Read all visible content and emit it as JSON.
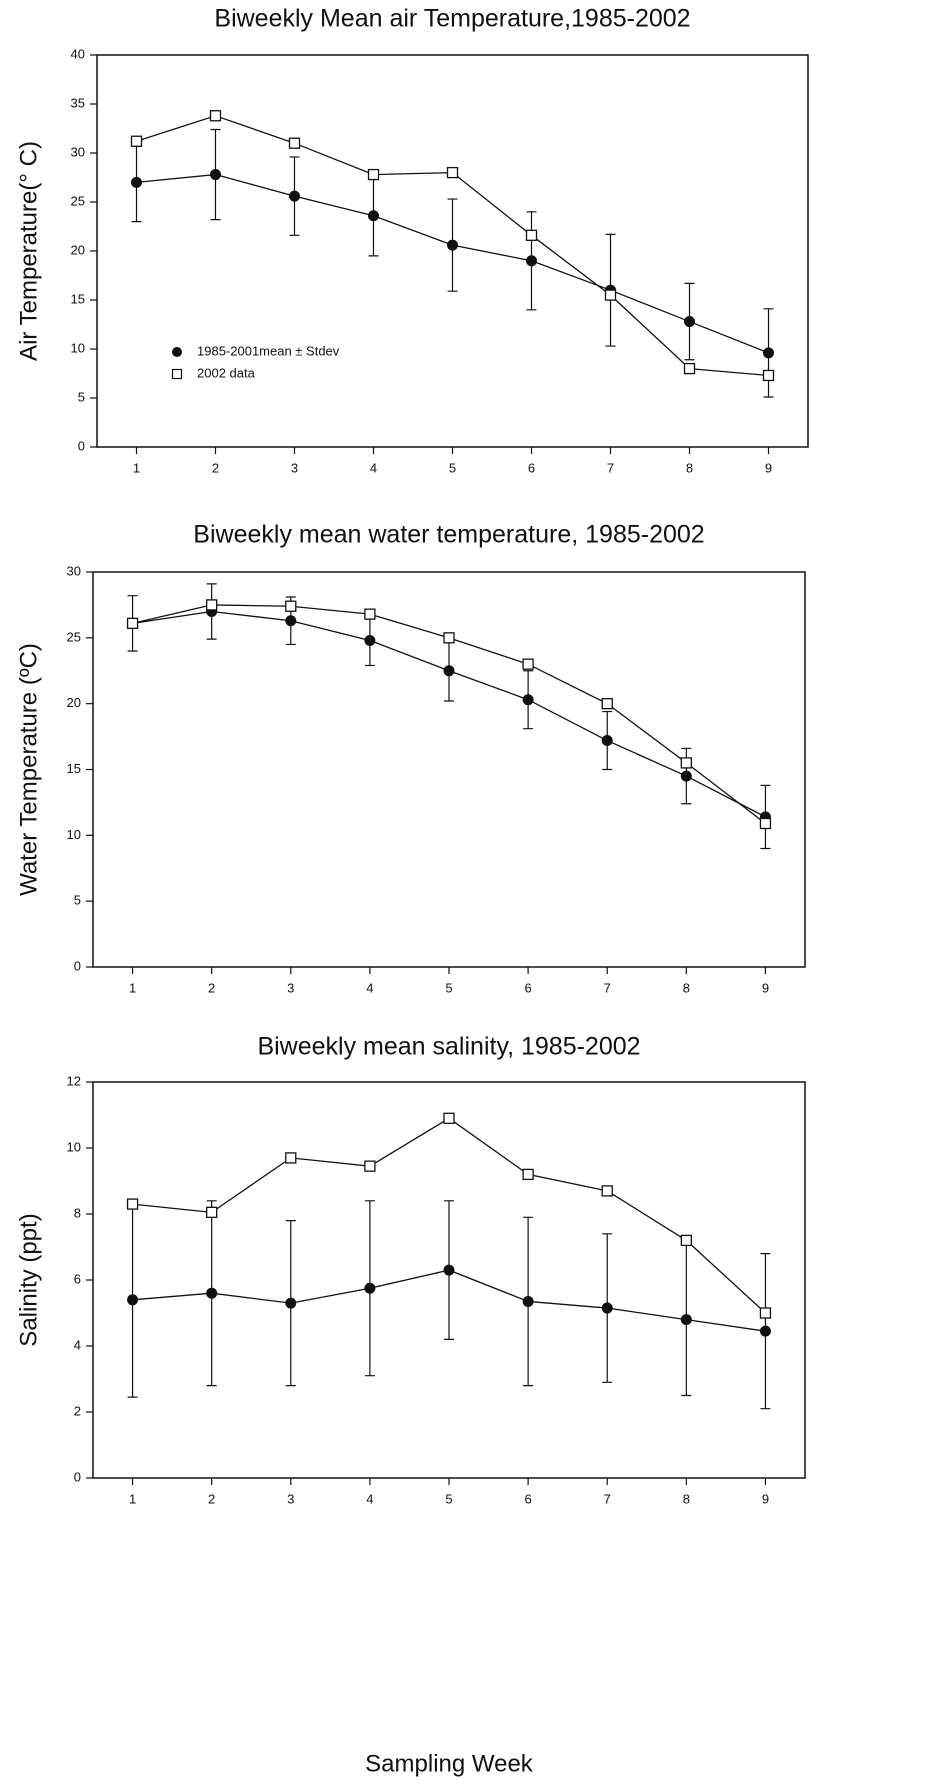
{
  "chart_data": [
    {
      "type": "line",
      "title": "Biweekly Mean air Temperature,1985-2002",
      "y_label": "Air Temperature(° C)",
      "x": [
        1,
        2,
        3,
        4,
        5,
        6,
        7,
        8,
        9
      ],
      "xlim": [
        0.5,
        9.5
      ],
      "xticks": [
        1,
        2,
        3,
        4,
        5,
        6,
        7,
        8,
        9
      ],
      "ylim": [
        0,
        40
      ],
      "yticks": [
        0,
        5,
        10,
        15,
        20,
        25,
        30,
        35,
        40
      ],
      "legend": "lower left",
      "series": [
        {
          "name": "1985-2001mean ± Stdev",
          "color": "#111111",
          "marker": "circle",
          "values": [
            27,
            27.8,
            25.6,
            23.6,
            20.6,
            19,
            16,
            12.8,
            9.6
          ],
          "errors": [
            4,
            4.6,
            4,
            4.1,
            4.7,
            5,
            5.7,
            3.9,
            4.5
          ]
        },
        {
          "name": "2002 data",
          "color": "#111111",
          "marker": "square",
          "values": [
            31.2,
            33.8,
            31,
            27.8,
            28,
            21.6,
            15.5,
            8,
            7.3
          ]
        }
      ]
    },
    {
      "type": "line",
      "title": "Biweekly mean water temperature, 1985-2002",
      "y_label": "Water Temperature (ºC)",
      "x": [
        1,
        2,
        3,
        4,
        5,
        6,
        7,
        8,
        9
      ],
      "xlim": [
        0.5,
        9.5
      ],
      "xticks": [
        1,
        2,
        3,
        4,
        5,
        6,
        7,
        8,
        9
      ],
      "ylim": [
        0,
        30
      ],
      "yticks": [
        0,
        5,
        10,
        15,
        20,
        25,
        30
      ],
      "series": [
        {
          "color": "#111111",
          "marker": "circle",
          "values": [
            26.1,
            27,
            26.3,
            24.8,
            22.5,
            20.3,
            17.2,
            14.5,
            11.4
          ],
          "errors": [
            2.1,
            2.1,
            1.8,
            1.9,
            2.3,
            2.2,
            2.2,
            2.1,
            2.4
          ]
        },
        {
          "color": "#111111",
          "marker": "square",
          "values": [
            26.1,
            27.5,
            27.4,
            26.8,
            25,
            23,
            20,
            15.5,
            10.9
          ]
        }
      ]
    },
    {
      "type": "line",
      "title": "Biweekly mean salinity, 1985-2002",
      "y_label": "Salinity (ppt)",
      "x_label": "Sampling Week",
      "x": [
        1,
        2,
        3,
        4,
        5,
        6,
        7,
        8,
        9
      ],
      "xlim": [
        0.5,
        9.5
      ],
      "xticks": [
        1,
        2,
        3,
        4,
        5,
        6,
        7,
        8,
        9
      ],
      "ylim": [
        0,
        12
      ],
      "yticks": [
        0,
        2,
        4,
        6,
        8,
        10,
        12
      ],
      "series": [
        {
          "color": "#111111",
          "marker": "circle",
          "values": [
            5.4,
            5.6,
            5.3,
            5.75,
            6.3,
            5.35,
            5.15,
            4.8,
            4.45
          ],
          "errors": [
            2.95,
            2.8,
            2.5,
            2.65,
            2.1,
            2.55,
            2.25,
            2.3,
            2.35
          ]
        },
        {
          "color": "#111111",
          "marker": "square",
          "values": [
            8.3,
            8.05,
            9.7,
            9.45,
            10.9,
            9.2,
            8.7,
            7.2,
            5.0
          ]
        }
      ]
    }
  ]
}
